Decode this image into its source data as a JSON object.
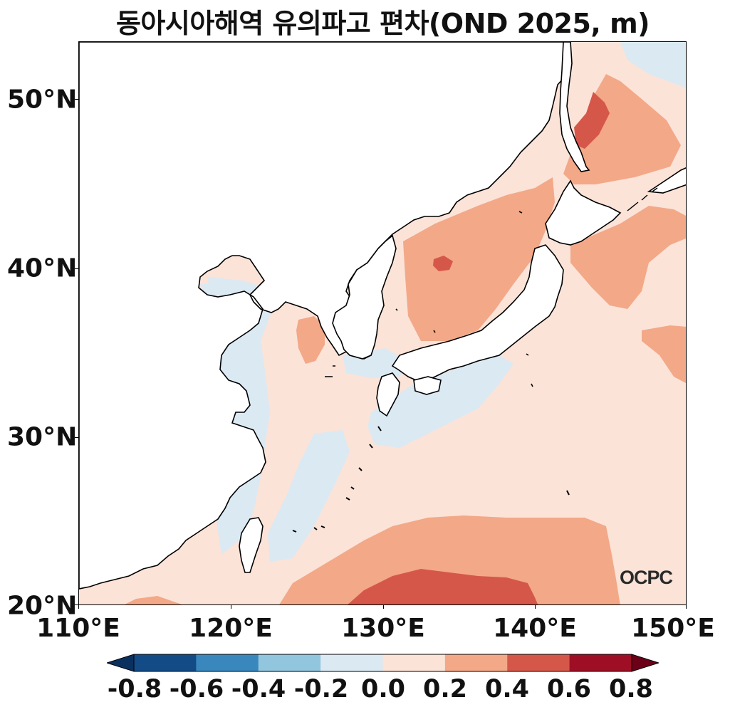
{
  "title": "동아시아해역 유의파고 편차(OND 2025, m)",
  "map": {
    "lat_labels": [
      "50°N",
      "40°N",
      "30°N",
      "20°N"
    ],
    "lon_labels": [
      "110°E",
      "120°E",
      "130°E",
      "140°E",
      "150°E"
    ],
    "lat_range": [
      20,
      53.5
    ],
    "lon_range": [
      110,
      150
    ]
  },
  "colorbar": {
    "labels": [
      "-0.8",
      "-0.6",
      "-0.4",
      "-0.2",
      "0.0",
      "0.2",
      "0.4",
      "0.6",
      "0.8"
    ],
    "colors": [
      "#134b87",
      "#3a87be",
      "#92c5de",
      "#dbe9f3",
      "#fbe3d8",
      "#f3a888",
      "#d5574a",
      "#9e0f26"
    ],
    "extend_low": "#0a3060",
    "extend_high": "#6b0018"
  },
  "logo": "OCPC",
  "palette": {
    "land": "#ffffff",
    "coast": "#000000",
    "neutral_pos": "#fbe3d8",
    "neutral_neg": "#dbe9f3",
    "pos_02": "#f3a888",
    "pos_04": "#d5574a"
  }
}
